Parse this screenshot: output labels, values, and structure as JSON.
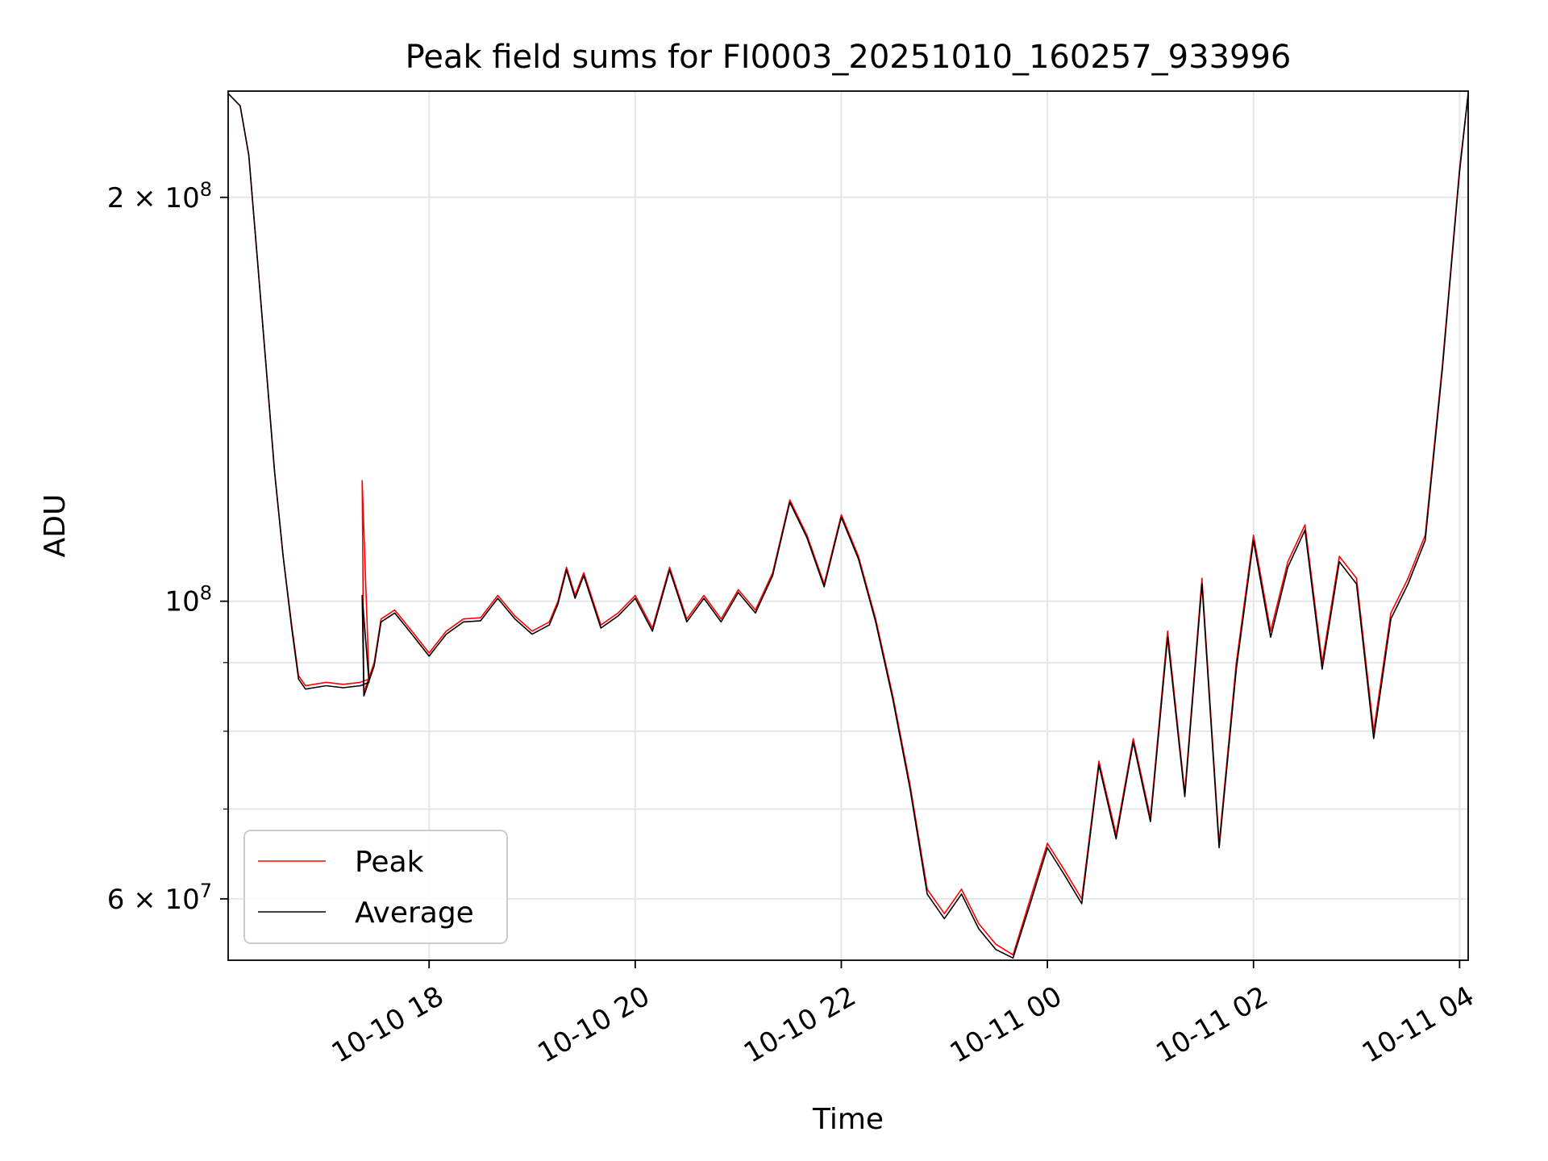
{
  "chart_data": {
    "type": "line",
    "title": "Peak field sums for FI0003_20251010_160257_933996",
    "xlabel": "Time",
    "ylabel": "ADU",
    "yscale": "log",
    "grid": true,
    "legend_position": "lower-left",
    "xlim": [
      "2025-10-10 16:03",
      "2025-10-11 04:05"
    ],
    "ylim": [
      54000000,
      240000000
    ],
    "x_ticks": [
      {
        "t": "2025-10-10 18:00",
        "label": "10-10 18"
      },
      {
        "t": "2025-10-10 20:00",
        "label": "10-10 20"
      },
      {
        "t": "2025-10-10 22:00",
        "label": "10-10 22"
      },
      {
        "t": "2025-10-11 00:00",
        "label": "10-11 00"
      },
      {
        "t": "2025-10-11 02:00",
        "label": "10-11 02"
      },
      {
        "t": "2025-10-11 04:00",
        "label": "10-11 04"
      }
    ],
    "y_major_ticks": [
      {
        "value": 60000000,
        "base": "6 × 10",
        "exp": "7"
      },
      {
        "value": 100000000,
        "base": "10",
        "exp": "8"
      },
      {
        "value": 200000000,
        "base": "2 × 10",
        "exp": "8"
      }
    ],
    "y_minor_ticks": [
      70000000,
      80000000,
      90000000
    ],
    "series": [
      {
        "name": "Peak",
        "color": "#ff0000",
        "points": [
          [
            "2025-10-10 16:03",
            239000000
          ],
          [
            "2025-10-10 16:10",
            234000000
          ],
          [
            "2025-10-10 16:15",
            215000000
          ],
          [
            "2025-10-10 16:20",
            180000000
          ],
          [
            "2025-10-10 16:25",
            150000000
          ],
          [
            "2025-10-10 16:30",
            125000000
          ],
          [
            "2025-10-10 16:35",
            108000000
          ],
          [
            "2025-10-10 16:40",
            96000000
          ],
          [
            "2025-10-10 16:44",
            88000000
          ],
          [
            "2025-10-10 16:48",
            86500000
          ],
          [
            "2025-10-10 17:00",
            87000000
          ],
          [
            "2025-10-10 17:10",
            86700000
          ],
          [
            "2025-10-10 17:20",
            87000000
          ],
          [
            "2025-10-10 17:25",
            87500000
          ],
          [
            "2025-10-10 17:21",
            123000000
          ],
          [
            "2025-10-10 17:22",
            85500000
          ],
          [
            "2025-10-10 17:28",
            90000000
          ],
          [
            "2025-10-10 17:32",
            97000000
          ],
          [
            "2025-10-10 17:40",
            98500000
          ],
          [
            "2025-10-10 17:50",
            95000000
          ],
          [
            "2025-10-10 18:00",
            91500000
          ],
          [
            "2025-10-10 18:10",
            95000000
          ],
          [
            "2025-10-10 18:20",
            97000000
          ],
          [
            "2025-10-10 18:30",
            97200000
          ],
          [
            "2025-10-10 18:40",
            101000000
          ],
          [
            "2025-10-10 18:50",
            97500000
          ],
          [
            "2025-10-10 19:00",
            95000000
          ],
          [
            "2025-10-10 19:10",
            96500000
          ],
          [
            "2025-10-10 19:15",
            100000000
          ],
          [
            "2025-10-10 19:20",
            106000000
          ],
          [
            "2025-10-10 19:25",
            101000000
          ],
          [
            "2025-10-10 19:30",
            105000000
          ],
          [
            "2025-10-10 19:40",
            96000000
          ],
          [
            "2025-10-10 19:50",
            98000000
          ],
          [
            "2025-10-10 20:00",
            101000000
          ],
          [
            "2025-10-10 20:10",
            95500000
          ],
          [
            "2025-10-10 20:20",
            106000000
          ],
          [
            "2025-10-10 20:30",
            97000000
          ],
          [
            "2025-10-10 20:40",
            101000000
          ],
          [
            "2025-10-10 20:50",
            97000000
          ],
          [
            "2025-10-10 21:00",
            102000000
          ],
          [
            "2025-10-10 21:10",
            98500000
          ],
          [
            "2025-10-10 21:20",
            105000000
          ],
          [
            "2025-10-10 21:30",
            119000000
          ],
          [
            "2025-10-10 21:40",
            112000000
          ],
          [
            "2025-10-10 21:50",
            103000000
          ],
          [
            "2025-10-10 22:00",
            116000000
          ],
          [
            "2025-10-10 22:10",
            108000000
          ],
          [
            "2025-10-10 22:20",
            97000000
          ],
          [
            "2025-10-10 22:30",
            85000000
          ],
          [
            "2025-10-10 22:40",
            73000000
          ],
          [
            "2025-10-10 22:50",
            61000000
          ],
          [
            "2025-10-10 23:00",
            58500000
          ],
          [
            "2025-10-10 23:10",
            61000000
          ],
          [
            "2025-10-10 23:20",
            57500000
          ],
          [
            "2025-10-10 23:30",
            55500000
          ],
          [
            "2025-10-10 23:40",
            54500000
          ],
          [
            "2025-10-10 23:50",
            60000000
          ],
          [
            "2025-10-11 00:00",
            66000000
          ],
          [
            "2025-10-11 00:10",
            63000000
          ],
          [
            "2025-10-11 00:20",
            60000000
          ],
          [
            "2025-10-11 00:30",
            76000000
          ],
          [
            "2025-10-11 00:40",
            67000000
          ],
          [
            "2025-10-11 00:50",
            79000000
          ],
          [
            "2025-10-11 01:00",
            69000000
          ],
          [
            "2025-10-11 01:10",
            95000000
          ],
          [
            "2025-10-11 01:20",
            72000000
          ],
          [
            "2025-10-11 01:30",
            104000000
          ],
          [
            "2025-10-11 01:40",
            66000000
          ],
          [
            "2025-10-11 01:50",
            90000000
          ],
          [
            "2025-10-11 02:00",
            112000000
          ],
          [
            "2025-10-11 02:10",
            95000000
          ],
          [
            "2025-10-11 02:20",
            107000000
          ],
          [
            "2025-10-11 02:30",
            114000000
          ],
          [
            "2025-10-11 02:40",
            90000000
          ],
          [
            "2025-10-11 02:50",
            108000000
          ],
          [
            "2025-10-11 03:00",
            104000000
          ],
          [
            "2025-10-11 03:10",
            80000000
          ],
          [
            "2025-10-11 03:20",
            98000000
          ],
          [
            "2025-10-11 03:30",
            104000000
          ],
          [
            "2025-10-11 03:40",
            112000000
          ],
          [
            "2025-10-11 03:50",
            150000000
          ],
          [
            "2025-10-11 04:00",
            210000000
          ],
          [
            "2025-10-11 04:05",
            239000000
          ]
        ]
      },
      {
        "name": "Average",
        "color": "#000000",
        "points": [
          [
            "2025-10-10 16:03",
            239000000
          ],
          [
            "2025-10-10 16:10",
            234000000
          ],
          [
            "2025-10-10 16:15",
            215000000
          ],
          [
            "2025-10-10 16:20",
            180000000
          ],
          [
            "2025-10-10 16:25",
            150000000
          ],
          [
            "2025-10-10 16:30",
            125000000
          ],
          [
            "2025-10-10 16:35",
            108000000
          ],
          [
            "2025-10-10 16:40",
            95500000
          ],
          [
            "2025-10-10 16:44",
            87500000
          ],
          [
            "2025-10-10 16:48",
            86000000
          ],
          [
            "2025-10-10 17:00",
            86500000
          ],
          [
            "2025-10-10 17:10",
            86200000
          ],
          [
            "2025-10-10 17:20",
            86500000
          ],
          [
            "2025-10-10 17:25",
            87000000
          ],
          [
            "2025-10-10 17:21",
            101000000
          ],
          [
            "2025-10-10 17:22",
            85000000
          ],
          [
            "2025-10-10 17:28",
            89500000
          ],
          [
            "2025-10-10 17:32",
            96500000
          ],
          [
            "2025-10-10 17:40",
            98000000
          ],
          [
            "2025-10-10 17:50",
            94500000
          ],
          [
            "2025-10-10 18:00",
            91000000
          ],
          [
            "2025-10-10 18:10",
            94500000
          ],
          [
            "2025-10-10 18:20",
            96500000
          ],
          [
            "2025-10-10 18:30",
            96700000
          ],
          [
            "2025-10-10 18:40",
            100500000
          ],
          [
            "2025-10-10 18:50",
            97000000
          ],
          [
            "2025-10-10 19:00",
            94500000
          ],
          [
            "2025-10-10 19:10",
            96000000
          ],
          [
            "2025-10-10 19:15",
            99500000
          ],
          [
            "2025-10-10 19:20",
            105500000
          ],
          [
            "2025-10-10 19:25",
            100500000
          ],
          [
            "2025-10-10 19:30",
            104500000
          ],
          [
            "2025-10-10 19:40",
            95500000
          ],
          [
            "2025-10-10 19:50",
            97500000
          ],
          [
            "2025-10-10 20:00",
            100500000
          ],
          [
            "2025-10-10 20:10",
            95000000
          ],
          [
            "2025-10-10 20:20",
            105500000
          ],
          [
            "2025-10-10 20:30",
            96500000
          ],
          [
            "2025-10-10 20:40",
            100500000
          ],
          [
            "2025-10-10 20:50",
            96500000
          ],
          [
            "2025-10-10 21:00",
            101500000
          ],
          [
            "2025-10-10 21:10",
            98000000
          ],
          [
            "2025-10-10 21:20",
            104500000
          ],
          [
            "2025-10-10 21:30",
            118500000
          ],
          [
            "2025-10-10 21:40",
            111500000
          ],
          [
            "2025-10-10 21:50",
            102500000
          ],
          [
            "2025-10-10 22:00",
            115500000
          ],
          [
            "2025-10-10 22:10",
            107500000
          ],
          [
            "2025-10-10 22:20",
            96500000
          ],
          [
            "2025-10-10 22:30",
            84500000
          ],
          [
            "2025-10-10 22:40",
            72500000
          ],
          [
            "2025-10-10 22:50",
            60500000
          ],
          [
            "2025-10-10 23:00",
            58000000
          ],
          [
            "2025-10-10 23:10",
            60500000
          ],
          [
            "2025-10-10 23:20",
            57000000
          ],
          [
            "2025-10-10 23:30",
            55000000
          ],
          [
            "2025-10-10 23:40",
            54200000
          ],
          [
            "2025-10-10 23:50",
            59500000
          ],
          [
            "2025-10-11 00:00",
            65500000
          ],
          [
            "2025-10-11 00:10",
            62500000
          ],
          [
            "2025-10-11 00:20",
            59500000
          ],
          [
            "2025-10-11 00:30",
            75500000
          ],
          [
            "2025-10-11 00:40",
            66500000
          ],
          [
            "2025-10-11 00:50",
            78500000
          ],
          [
            "2025-10-11 01:00",
            68500000
          ],
          [
            "2025-10-11 01:10",
            94000000
          ],
          [
            "2025-10-11 01:20",
            71500000
          ],
          [
            "2025-10-11 01:30",
            103000000
          ],
          [
            "2025-10-11 01:40",
            65500000
          ],
          [
            "2025-10-11 01:50",
            89000000
          ],
          [
            "2025-10-11 02:00",
            111000000
          ],
          [
            "2025-10-11 02:10",
            94000000
          ],
          [
            "2025-10-11 02:20",
            106000000
          ],
          [
            "2025-10-11 02:30",
            113000000
          ],
          [
            "2025-10-11 02:40",
            89000000
          ],
          [
            "2025-10-11 02:50",
            107000000
          ],
          [
            "2025-10-11 03:00",
            103000000
          ],
          [
            "2025-10-11 03:10",
            79000000
          ],
          [
            "2025-10-11 03:20",
            97000000
          ],
          [
            "2025-10-11 03:30",
            103000000
          ],
          [
            "2025-10-11 03:40",
            111000000
          ],
          [
            "2025-10-11 03:50",
            149000000
          ],
          [
            "2025-10-11 04:00",
            209000000
          ],
          [
            "2025-10-11 04:05",
            239000000
          ]
        ]
      }
    ]
  }
}
